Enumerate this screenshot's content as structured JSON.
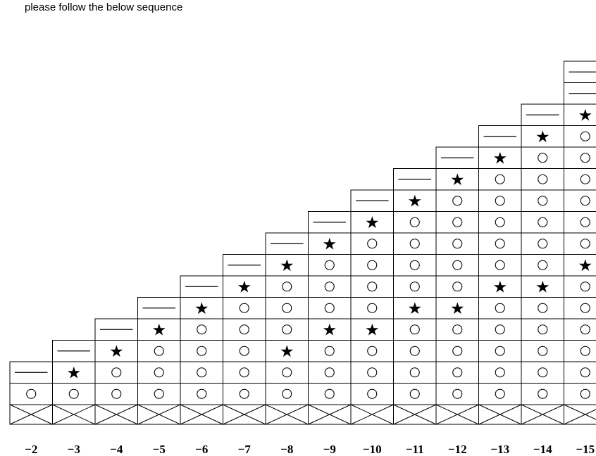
{
  "header": {
    "title": "please follow the below sequence"
  },
  "symbols": {
    "dash": "—",
    "star": "★",
    "circle": "○"
  },
  "columns": [
    {
      "label": "−2",
      "cells": [
        "circle",
        "dash"
      ]
    },
    {
      "label": "−3",
      "cells": [
        "circle",
        "star",
        "dash"
      ]
    },
    {
      "label": "−4",
      "cells": [
        "circle",
        "circle",
        "star",
        "dash"
      ]
    },
    {
      "label": "−5",
      "cells": [
        "circle",
        "circle",
        "circle",
        "star",
        "dash"
      ]
    },
    {
      "label": "−6",
      "cells": [
        "circle",
        "circle",
        "circle",
        "circle",
        "star",
        "dash"
      ]
    },
    {
      "label": "−7",
      "cells": [
        "circle",
        "circle",
        "circle",
        "circle",
        "circle",
        "star",
        "dash"
      ]
    },
    {
      "label": "−8",
      "cells": [
        "circle",
        "circle",
        "star",
        "circle",
        "circle",
        "circle",
        "star",
        "dash"
      ]
    },
    {
      "label": "−9",
      "cells": [
        "circle",
        "circle",
        "circle",
        "star",
        "circle",
        "circle",
        "circle",
        "star",
        "dash"
      ]
    },
    {
      "label": "−10",
      "cells": [
        "circle",
        "circle",
        "circle",
        "star",
        "circle",
        "circle",
        "circle",
        "circle",
        "star",
        "dash"
      ]
    },
    {
      "label": "−11",
      "cells": [
        "circle",
        "circle",
        "circle",
        "circle",
        "star",
        "circle",
        "circle",
        "circle",
        "circle",
        "star",
        "dash"
      ]
    },
    {
      "label": "−12",
      "cells": [
        "circle",
        "circle",
        "circle",
        "circle",
        "star",
        "circle",
        "circle",
        "circle",
        "circle",
        "circle",
        "star",
        "dash"
      ]
    },
    {
      "label": "−13",
      "cells": [
        "circle",
        "circle",
        "circle",
        "circle",
        "circle",
        "star",
        "circle",
        "circle",
        "circle",
        "circle",
        "circle",
        "star",
        "dash"
      ]
    },
    {
      "label": "−14",
      "cells": [
        "circle",
        "circle",
        "circle",
        "circle",
        "circle",
        "star",
        "circle",
        "circle",
        "circle",
        "circle",
        "circle",
        "circle",
        "star",
        "dash"
      ]
    },
    {
      "label": "−15",
      "cells": [
        "circle",
        "circle",
        "circle",
        "circle",
        "circle",
        "circle",
        "star",
        "circle",
        "circle",
        "circle",
        "circle",
        "circle",
        "circle",
        "star",
        "dash",
        "dash"
      ]
    }
  ]
}
